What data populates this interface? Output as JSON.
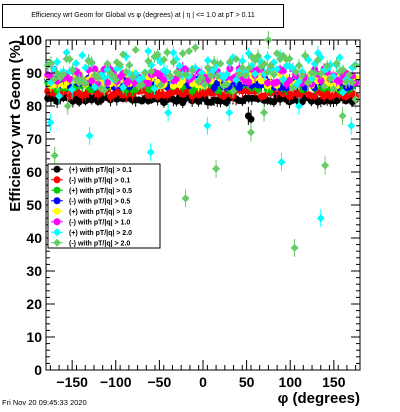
{
  "title": "Efficiency wrt Geom for Global vs φ (degrees) at | η | <= 1.0 at pT > 0.11",
  "footer": "Fri Nov 20 09:45:33 2020",
  "chart_data": {
    "type": "scatter",
    "title": "Efficiency wrt Geom for Global vs φ (degrees) at | η | <= 1.0 at pT > 0.11",
    "xlabel": "φ (degrees)",
    "ylabel": "Efficiency wrt Geom (%)",
    "xlim": [
      -180,
      180
    ],
    "ylim": [
      0,
      100
    ],
    "xticks": [
      -150,
      -100,
      -50,
      0,
      50,
      100,
      150
    ],
    "yticks": [
      0,
      10,
      20,
      30,
      40,
      50,
      60,
      70,
      80,
      90,
      100
    ],
    "grid": false,
    "legend_position": "left-middle",
    "series": [
      {
        "name": "(+) with pT/|q| > 0.1",
        "color": "#000000",
        "marker": "circle",
        "base": 82,
        "spread": 1.0
      },
      {
        "name": "(-) with pT/|q| > 0.1",
        "color": "#ff0000",
        "marker": "circle",
        "base": 84,
        "spread": 1.2
      },
      {
        "name": "(+) with pT/|q| > 0.5",
        "color": "#00cc00",
        "marker": "circle",
        "base": 86,
        "spread": 1.5
      },
      {
        "name": "(-) with pT/|q| > 0.5",
        "color": "#0000ff",
        "marker": "circle",
        "base": 87,
        "spread": 1.5
      },
      {
        "name": "(+) with pT/|q| > 1.0",
        "color": "#ffff00",
        "marker": "circle",
        "base": 88,
        "spread": 2.0
      },
      {
        "name": "(-) with pT/|q| > 1.0",
        "color": "#ff00ff",
        "marker": "circle",
        "base": 89,
        "spread": 2.5
      },
      {
        "name": "(+) with pT/|q| > 2.0",
        "color": "#00ffff",
        "marker": "diamond",
        "base": 91,
        "spread": 4.0
      },
      {
        "name": "(-) with pT/|q| > 2.0",
        "color": "#66cc66",
        "marker": "diamond",
        "base": 91,
        "spread": 4.5
      }
    ],
    "outliers": [
      {
        "series": 0,
        "x": 52,
        "y": 77
      },
      {
        "series": 0,
        "x": 55,
        "y": 76
      },
      {
        "series": 6,
        "x": -175,
        "y": 75
      },
      {
        "series": 6,
        "x": -165,
        "y": 83
      },
      {
        "series": 6,
        "x": -150,
        "y": 85
      },
      {
        "series": 6,
        "x": -130,
        "y": 71
      },
      {
        "series": 6,
        "x": -60,
        "y": 66
      },
      {
        "series": 6,
        "x": -40,
        "y": 78
      },
      {
        "series": 6,
        "x": 5,
        "y": 74
      },
      {
        "series": 6,
        "x": 30,
        "y": 78
      },
      {
        "series": 6,
        "x": 90,
        "y": 63
      },
      {
        "series": 6,
        "x": 110,
        "y": 80
      },
      {
        "series": 6,
        "x": 135,
        "y": 46
      },
      {
        "series": 6,
        "x": 170,
        "y": 74
      },
      {
        "series": 7,
        "x": -170,
        "y": 65
      },
      {
        "series": 7,
        "x": -155,
        "y": 80
      },
      {
        "series": 7,
        "x": -100,
        "y": 88
      },
      {
        "series": 7,
        "x": -20,
        "y": 52
      },
      {
        "series": 7,
        "x": 15,
        "y": 61
      },
      {
        "series": 7,
        "x": 55,
        "y": 72
      },
      {
        "series": 7,
        "x": 70,
        "y": 78
      },
      {
        "series": 7,
        "x": 75,
        "y": 100
      },
      {
        "series": 7,
        "x": 105,
        "y": 37
      },
      {
        "series": 7,
        "x": 120,
        "y": 87
      },
      {
        "series": 7,
        "x": 140,
        "y": 62
      },
      {
        "series": 7,
        "x": 160,
        "y": 77
      },
      {
        "series": 7,
        "x": 175,
        "y": 82
      }
    ]
  }
}
